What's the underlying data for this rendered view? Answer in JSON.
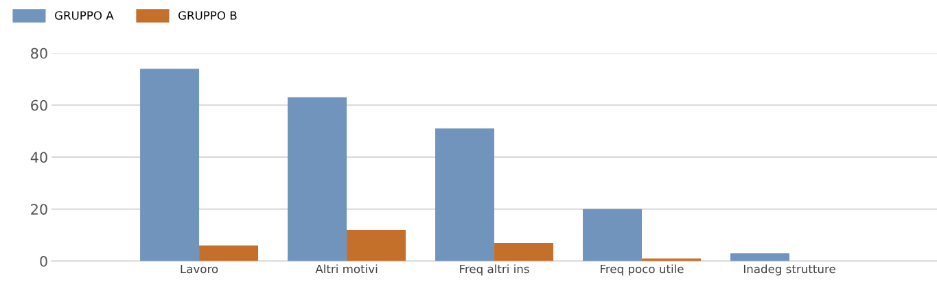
{
  "chart_data": {
    "type": "bar",
    "categories": [
      "Lavoro",
      "Altri motivi",
      "Freq altri ins",
      "Freq poco utile",
      "Inadeg strutture"
    ],
    "series": [
      {
        "name": "GRUPPO A",
        "color": "#7094bb",
        "values": [
          74,
          63,
          51,
          20,
          3
        ]
      },
      {
        "name": "GRUPPO B",
        "color": "#c46f2a",
        "values": [
          6,
          12,
          7,
          1,
          0
        ]
      }
    ],
    "ylim": [
      0,
      80
    ],
    "yticks": [
      0,
      20,
      40,
      60,
      80
    ],
    "grid": "y",
    "legend": "top left"
  }
}
